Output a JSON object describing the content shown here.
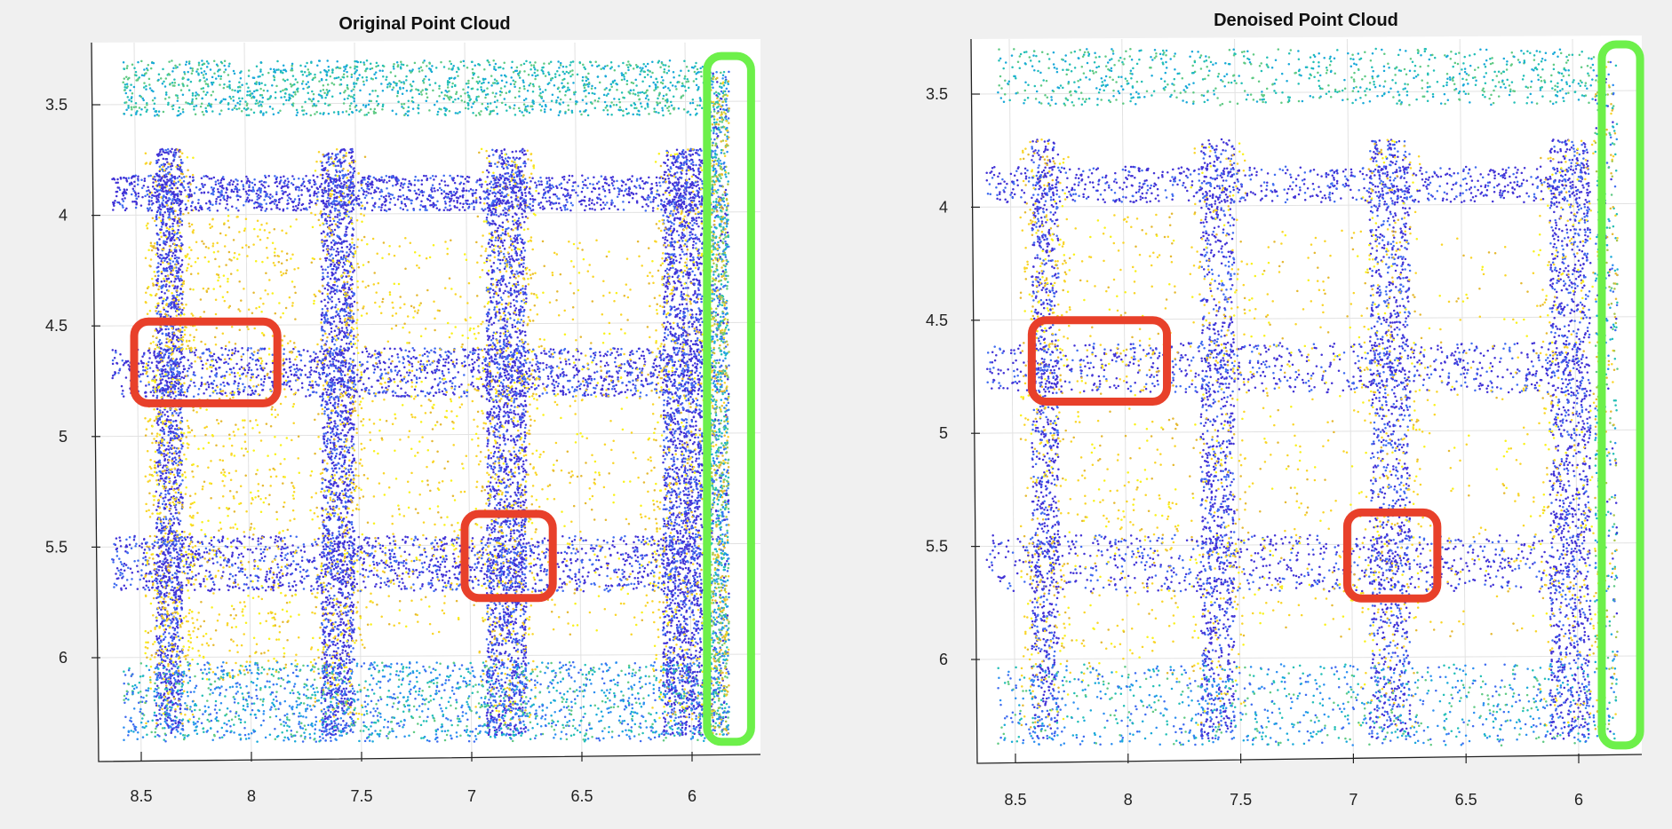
{
  "chart_data": [
    {
      "type": "scatter",
      "title": "Original Point Cloud",
      "x_ticks": [
        8.5,
        8,
        7.5,
        7,
        6.5,
        6
      ],
      "y_ticks": [
        3.5,
        4,
        4.5,
        5,
        5.5,
        6
      ],
      "xlim": [
        8.65,
        5.7
      ],
      "ylim": [
        3.25,
        6.45
      ],
      "x_axis": "reversed",
      "y_axis": "reversed",
      "grid": true,
      "colormap": "parula (blue to yellow)",
      "series": [
        {
          "values": [
            [
              8.3,
              3.9
            ],
            [
              7.65,
              3.8
            ],
            [
              7.0,
              3.85
            ],
            [
              6.6,
              3.75
            ],
            [
              6.0,
              4.3
            ],
            [
              5.95,
              5.2
            ],
            [
              8.35,
              5.6
            ],
            [
              7.2,
              5.7
            ],
            [
              6.8,
              6.3
            ],
            [
              6.2,
              6.2
            ]
          ]
        }
      ],
      "regions": [
        {
          "shape": "rounded-rect",
          "color": "#e8402a",
          "x": [
            8.5,
            7.85
          ],
          "y": [
            4.48,
            4.85
          ]
        },
        {
          "shape": "rounded-rect",
          "color": "#e8402a",
          "x": [
            7.0,
            6.6
          ],
          "y": [
            5.35,
            5.73
          ]
        },
        {
          "shape": "rounded-rect",
          "color": "#6df04a",
          "x": [
            5.9,
            5.7
          ],
          "y": [
            3.28,
            6.38
          ]
        }
      ]
    },
    {
      "type": "scatter",
      "title": "Denoised Point Cloud",
      "x_ticks": [
        8.5,
        8,
        7.5,
        7,
        6.5,
        6
      ],
      "y_ticks": [
        3.5,
        4,
        4.5,
        5,
        5.5,
        6
      ],
      "xlim": [
        8.65,
        5.7
      ],
      "ylim": [
        3.25,
        6.45
      ],
      "x_axis": "reversed",
      "y_axis": "reversed",
      "grid": true,
      "colormap": "parula (blue to yellow)",
      "series": [
        {
          "values": [
            [
              8.3,
              3.9
            ],
            [
              7.65,
              3.8
            ],
            [
              7.0,
              3.85
            ],
            [
              6.6,
              3.75
            ],
            [
              6.0,
              4.3
            ],
            [
              5.95,
              5.2
            ],
            [
              8.35,
              5.6
            ],
            [
              7.2,
              5.7
            ],
            [
              6.8,
              6.3
            ],
            [
              6.2,
              6.2
            ]
          ]
        }
      ],
      "regions": [
        {
          "shape": "rounded-rect",
          "color": "#e8402a",
          "x": [
            8.4,
            7.8
          ],
          "y": [
            4.5,
            4.86
          ]
        },
        {
          "shape": "rounded-rect",
          "color": "#e8402a",
          "x": [
            7.0,
            6.6
          ],
          "y": [
            5.35,
            5.73
          ]
        },
        {
          "shape": "rounded-rect",
          "color": "#6df04a",
          "x": [
            5.87,
            5.7
          ],
          "y": [
            3.28,
            6.38
          ]
        }
      ]
    }
  ]
}
